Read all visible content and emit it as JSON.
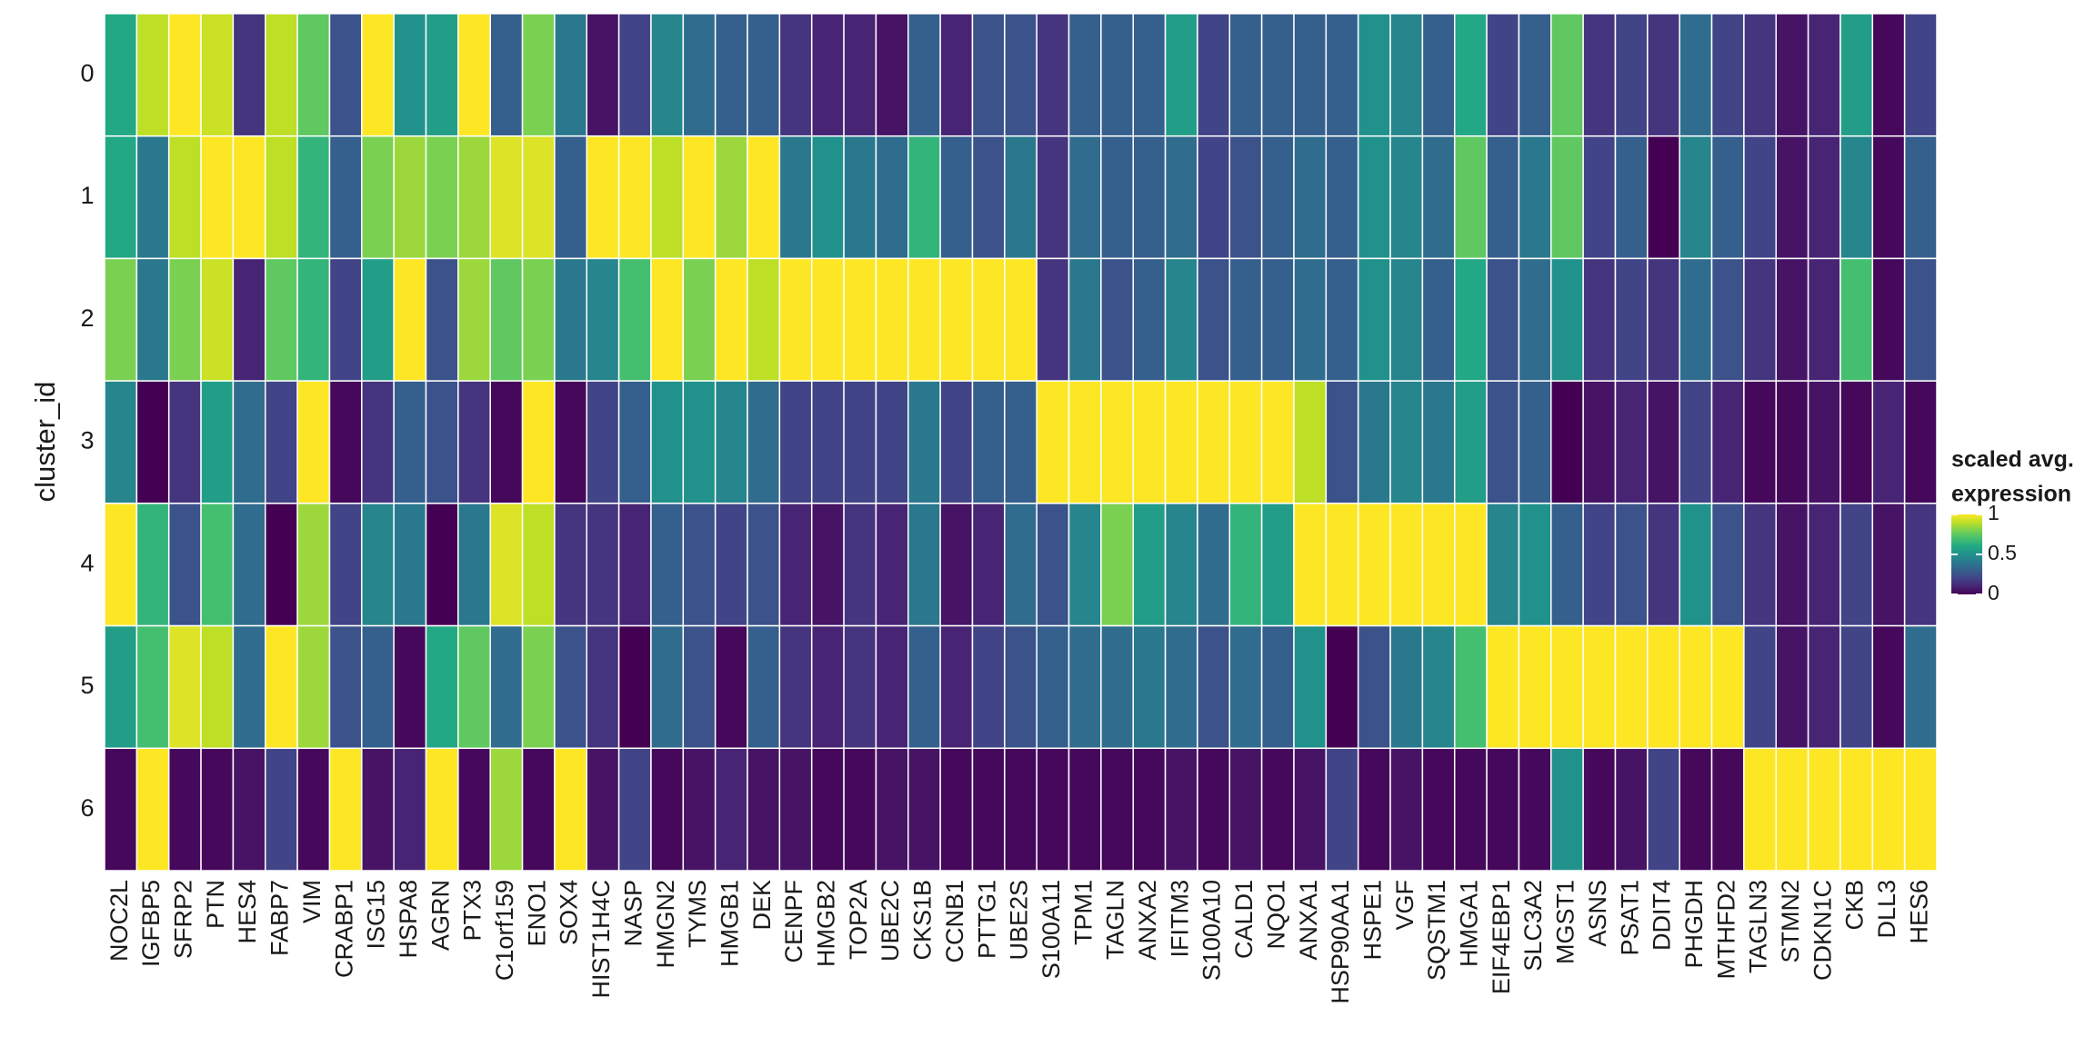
{
  "chart_data": {
    "type": "heatmap",
    "y_label": "cluster_id",
    "legend_title": [
      "scaled avg.",
      "expression"
    ],
    "x": [
      "NOC2L",
      "IGFBP5",
      "SFRP2",
      "PTN",
      "HES4",
      "FABP7",
      "VIM",
      "CRABP1",
      "ISG15",
      "HSPA8",
      "AGRN",
      "PTX3",
      "C1orf159",
      "ENO1",
      "SOX4",
      "HIST1H4C",
      "NASP",
      "HMGN2",
      "TYMS",
      "HMGB1",
      "DEK",
      "CENPF",
      "HMGB2",
      "TOP2A",
      "UBE2C",
      "CKS1B",
      "CCNB1",
      "PTTG1",
      "UBE2S",
      "S100A11",
      "TPM1",
      "TAGLN",
      "ANXA2",
      "IFITM3",
      "S100A10",
      "CALD1",
      "NQO1",
      "ANXA1",
      "HSP90AA1",
      "HSPE1",
      "VGF",
      "SQSTM1",
      "HMGA1",
      "EIF4EBP1",
      "SLC3A2",
      "MGST1",
      "ASNS",
      "PSAT1",
      "DDIT4",
      "PHGDH",
      "MTHFD2",
      "TAGLN3",
      "STMN2",
      "CDKN1C",
      "CKB",
      "DLL3",
      "HES6"
    ],
    "y": [
      "0",
      "1",
      "2",
      "3",
      "4",
      "5",
      "6"
    ],
    "z": [
      [
        0.6,
        0.9,
        1,
        0.92,
        0.15,
        0.9,
        0.75,
        0.25,
        1,
        0.5,
        0.55,
        1,
        0.3,
        0.8,
        0.4,
        0.05,
        0.2,
        0.45,
        0.35,
        0.3,
        0.3,
        0.15,
        0.1,
        0.1,
        0.05,
        0.3,
        0.1,
        0.25,
        0.25,
        0.15,
        0.3,
        0.3,
        0.3,
        0.55,
        0.2,
        0.3,
        0.3,
        0.3,
        0.3,
        0.5,
        0.45,
        0.3,
        0.6,
        0.2,
        0.3,
        0.75,
        0.15,
        0.2,
        0.15,
        0.35,
        0.2,
        0.15,
        0.05,
        0.1,
        0.55,
        0.02,
        0.2
      ],
      [
        0.6,
        0.4,
        0.9,
        1,
        1,
        0.9,
        0.65,
        0.3,
        0.8,
        0.85,
        0.8,
        0.85,
        0.95,
        0.95,
        0.3,
        1,
        1,
        0.9,
        1,
        0.85,
        1,
        0.4,
        0.5,
        0.4,
        0.35,
        0.65,
        0.3,
        0.25,
        0.4,
        0.15,
        0.35,
        0.3,
        0.3,
        0.35,
        0.2,
        0.25,
        0.3,
        0.35,
        0.3,
        0.5,
        0.45,
        0.35,
        0.75,
        0.3,
        0.4,
        0.75,
        0.2,
        0.3,
        0,
        0.45,
        0.3,
        0.2,
        0.05,
        0.1,
        0.45,
        0.02,
        0.3
      ],
      [
        0.8,
        0.4,
        0.8,
        0.92,
        0.1,
        0.75,
        0.65,
        0.2,
        0.55,
        1,
        0.25,
        0.85,
        0.75,
        0.8,
        0.4,
        0.45,
        0.7,
        1,
        0.8,
        1,
        0.9,
        1,
        1,
        1,
        1,
        1,
        1,
        1,
        1,
        0.15,
        0.4,
        0.25,
        0.3,
        0.45,
        0.25,
        0.3,
        0.3,
        0.35,
        0.3,
        0.5,
        0.45,
        0.3,
        0.6,
        0.25,
        0.35,
        0.5,
        0.15,
        0.2,
        0.15,
        0.35,
        0.25,
        0.15,
        0.05,
        0.1,
        0.7,
        0.02,
        0.25
      ],
      [
        0.45,
        0,
        0.15,
        0.55,
        0.35,
        0.2,
        1,
        0.02,
        0.15,
        0.3,
        0.25,
        0.15,
        0.02,
        1,
        0.02,
        0.2,
        0.3,
        0.5,
        0.5,
        0.45,
        0.35,
        0.2,
        0.2,
        0.2,
        0.2,
        0.4,
        0.2,
        0.3,
        0.3,
        1,
        1,
        1,
        1,
        1,
        1,
        1,
        1,
        0.9,
        0.25,
        0.4,
        0.45,
        0.4,
        0.55,
        0.25,
        0.3,
        0,
        0.05,
        0.1,
        0.05,
        0.2,
        0.1,
        0.02,
        0.02,
        0.05,
        0.02,
        0.1,
        0.02
      ],
      [
        1,
        0.65,
        0.25,
        0.7,
        0.35,
        0,
        0.85,
        0.2,
        0.45,
        0.4,
        0,
        0.4,
        0.95,
        0.9,
        0.15,
        0.15,
        0.1,
        0.3,
        0.25,
        0.2,
        0.25,
        0.1,
        0.05,
        0.15,
        0.1,
        0.4,
        0.05,
        0.1,
        0.35,
        0.25,
        0.45,
        0.8,
        0.55,
        0.45,
        0.35,
        0.65,
        0.55,
        1,
        1,
        1,
        1,
        1,
        1,
        0.45,
        0.5,
        0.3,
        0.2,
        0.25,
        0.15,
        0.5,
        0.25,
        0.15,
        0.05,
        0.1,
        0.2,
        0.05,
        0.15
      ],
      [
        0.55,
        0.7,
        0.95,
        0.9,
        0.35,
        1,
        0.85,
        0.25,
        0.3,
        0.02,
        0.6,
        0.75,
        0.35,
        0.8,
        0.25,
        0.15,
        0,
        0.35,
        0.25,
        0.02,
        0.3,
        0.15,
        0.1,
        0.15,
        0.1,
        0.3,
        0.1,
        0.2,
        0.25,
        0.3,
        0.35,
        0.35,
        0.4,
        0.35,
        0.25,
        0.35,
        0.3,
        0.5,
        0,
        0.25,
        0.4,
        0.45,
        0.7,
        1,
        1,
        1,
        1,
        1,
        1,
        1,
        1,
        0.2,
        0.05,
        0.1,
        0.2,
        0.02,
        0.35
      ],
      [
        0.02,
        1,
        0.02,
        0.02,
        0.05,
        0.2,
        0.02,
        1,
        0.05,
        0.1,
        1,
        0.02,
        0.85,
        0.02,
        1,
        0.05,
        0.2,
        0.02,
        0.05,
        0.1,
        0.05,
        0.05,
        0.02,
        0.02,
        0.05,
        0.05,
        0.02,
        0.02,
        0.02,
        0.02,
        0.02,
        0.02,
        0.02,
        0.05,
        0.02,
        0.05,
        0.02,
        0.05,
        0.2,
        0.02,
        0.05,
        0.02,
        0.02,
        0.02,
        0.02,
        0.5,
        0.02,
        0.05,
        0.2,
        0.02,
        0.02,
        1,
        1,
        1,
        1,
        1,
        1
      ]
    ],
    "clim": [
      0,
      1
    ],
    "colorbar_ticks": [
      0,
      0.5,
      1
    ],
    "colorscale": [
      "#440154",
      "#482475",
      "#414487",
      "#355f8d",
      "#2a788e",
      "#21918c",
      "#22a884",
      "#44bf70",
      "#7ad151",
      "#bddf26",
      "#fde725"
    ]
  }
}
